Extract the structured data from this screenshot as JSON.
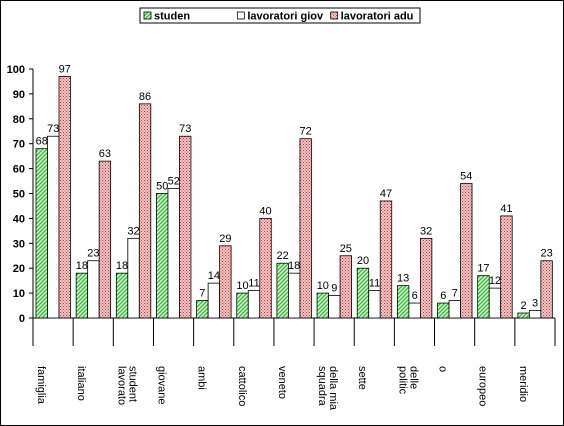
{
  "chart_data": {
    "type": "bar",
    "categories": [
      "famiglia",
      "italiano",
      "lavorato\nstudent",
      "giovane",
      "ambi",
      "cattolico",
      "veneto",
      "squadra\ndella mia",
      "sette",
      "politic\ndelle",
      "o",
      "europeo",
      "meridio"
    ],
    "series": [
      {
        "name": "studen",
        "color": "#33cc33",
        "values": [
          68,
          18,
          18,
          50,
          7,
          10,
          22,
          10,
          20,
          13,
          6,
          17,
          2
        ]
      },
      {
        "name": "lavoratori giov",
        "color": "#ffffff",
        "values": [
          73,
          23,
          32,
          52,
          14,
          11,
          18,
          9,
          11,
          6,
          7,
          12,
          3
        ]
      },
      {
        "name": "lavoratori adu",
        "color": "#cc3333",
        "values": [
          97,
          63,
          86,
          73,
          29,
          40,
          72,
          25,
          47,
          32,
          54,
          41,
          23
        ]
      }
    ],
    "ylim": [
      0,
      100
    ],
    "yticks": [
      0,
      10,
      20,
      30,
      40,
      50,
      60,
      70,
      80,
      90,
      100
    ],
    "legend": "top"
  }
}
